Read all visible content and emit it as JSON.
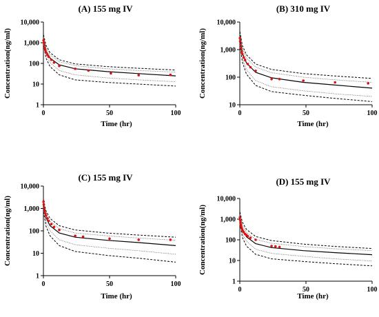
{
  "chart_data": [
    {
      "type": "line",
      "title": "(A) 155 mg IV",
      "xlabel": "Time (hr)",
      "ylabel": "Concentration(ng/ml)",
      "xlim": [
        0,
        100
      ],
      "ylim": [
        1,
        10000
      ],
      "y_scale": "log",
      "x_ticks": [
        "0",
        "50",
        "100"
      ],
      "y_ticks": [
        "1",
        "10",
        "100",
        "1,000",
        "10,000"
      ],
      "grid": false,
      "observed": {
        "x": [
          0.1,
          0.25,
          0.5,
          1,
          1.5,
          2,
          3,
          4,
          6,
          8,
          12,
          24,
          34,
          51,
          72,
          96
        ],
        "y": [
          1300,
          1000,
          800,
          560,
          430,
          340,
          260,
          210,
          150,
          110,
          75,
          55,
          45,
          33,
          27,
          28
        ]
      },
      "series": [
        {
          "x": [
            0.1,
            2,
            5,
            12,
            24,
            48,
            72,
            100
          ],
          "y": [
            1500,
            400,
            180,
            85,
            55,
            40,
            32,
            25
          ]
        },
        {
          "x": [
            0.1,
            2,
            5,
            12,
            24,
            48,
            72,
            100
          ],
          "y": [
            2400,
            750,
            330,
            150,
            95,
            70,
            58,
            48
          ]
        },
        {
          "x": [
            0.1,
            2,
            5,
            12,
            24,
            48,
            72,
            100
          ],
          "y": [
            800,
            180,
            70,
            28,
            16,
            12,
            10,
            8
          ]
        },
        {
          "x": [
            0.1,
            2,
            5,
            12,
            24,
            48,
            72,
            100
          ],
          "y": [
            1900,
            580,
            260,
            120,
            78,
            55,
            45,
            38
          ]
        },
        {
          "x": [
            0.1,
            2,
            5,
            12,
            24,
            48,
            72,
            100
          ],
          "y": [
            1100,
            280,
            110,
            45,
            28,
            20,
            16,
            13
          ]
        }
      ]
    },
    {
      "type": "line",
      "title": "(B) 310 mg IV",
      "xlabel": "Time (hr)",
      "ylabel": "Concentration(ng/ml)",
      "xlim": [
        0,
        100
      ],
      "ylim": [
        10,
        10000
      ],
      "y_scale": "log",
      "x_ticks": [
        "0",
        "50",
        "100"
      ],
      "y_ticks": [
        "10",
        "100",
        "1,000",
        "10,000"
      ],
      "grid": false,
      "observed": {
        "x": [
          0.1,
          0.25,
          0.5,
          1,
          1.5,
          2,
          3,
          4,
          6,
          8,
          12,
          24,
          30,
          48,
          72,
          97
        ],
        "y": [
          2600,
          2000,
          1500,
          1100,
          850,
          680,
          520,
          420,
          300,
          230,
          170,
          85,
          85,
          75,
          65,
          60
        ]
      },
      "series": [
        {
          "x": [
            0.1,
            2,
            5,
            12,
            24,
            48,
            72,
            100
          ],
          "y": [
            2600,
            750,
            330,
            150,
            95,
            65,
            52,
            40
          ]
        },
        {
          "x": [
            0.1,
            2,
            5,
            12,
            24,
            48,
            72,
            100
          ],
          "y": [
            4500,
            1400,
            650,
            300,
            190,
            135,
            110,
            90
          ]
        },
        {
          "x": [
            0.1,
            2,
            5,
            12,
            24,
            48,
            72,
            100
          ],
          "y": [
            1500,
            350,
            130,
            50,
            30,
            22,
            17,
            13
          ]
        },
        {
          "x": [
            0.1,
            2,
            5,
            12,
            24,
            48,
            72,
            100
          ],
          "y": [
            3500,
            1100,
            500,
            230,
            145,
            100,
            80,
            65
          ]
        },
        {
          "x": [
            0.1,
            2,
            5,
            12,
            24,
            48,
            72,
            100
          ],
          "y": [
            2000,
            500,
            190,
            75,
            45,
            32,
            25,
            20
          ]
        }
      ]
    },
    {
      "type": "line",
      "title": "(C) 155 mg IV",
      "xlabel": "Time (hr)",
      "ylabel": "Concentration(ng/ml)",
      "xlim": [
        0,
        100
      ],
      "ylim": [
        1,
        10000
      ],
      "y_scale": "log",
      "x_ticks": [
        "0",
        "50",
        "100"
      ],
      "y_ticks": [
        "1",
        "10",
        "100",
        "1,000",
        "10,000"
      ],
      "grid": false,
      "observed": {
        "x": [
          0.1,
          0.25,
          0.5,
          1,
          1.5,
          2,
          3,
          4,
          6,
          8,
          12,
          24,
          30,
          50,
          72,
          96
        ],
        "y": [
          2000,
          1500,
          1100,
          800,
          600,
          480,
          360,
          280,
          200,
          150,
          110,
          60,
          55,
          45,
          40,
          40
        ]
      },
      "series": [
        {
          "x": [
            0.1,
            2,
            5,
            12,
            24,
            48,
            72,
            100
          ],
          "y": [
            1400,
            380,
            170,
            80,
            52,
            38,
            30,
            22
          ]
        },
        {
          "x": [
            0.1,
            2,
            5,
            12,
            24,
            48,
            72,
            100
          ],
          "y": [
            2400,
            780,
            360,
            170,
            110,
            80,
            65,
            52
          ]
        },
        {
          "x": [
            0.1,
            2,
            5,
            12,
            24,
            48,
            72,
            100
          ],
          "y": [
            700,
            160,
            60,
            22,
            12,
            8,
            6,
            4
          ]
        },
        {
          "x": [
            0.1,
            2,
            5,
            12,
            24,
            48,
            72,
            100
          ],
          "y": [
            1900,
            600,
            270,
            125,
            80,
            60,
            48,
            38
          ]
        },
        {
          "x": [
            0.1,
            2,
            5,
            12,
            24,
            48,
            72,
            100
          ],
          "y": [
            1000,
            250,
            100,
            40,
            24,
            17,
            13,
            9
          ]
        }
      ]
    },
    {
      "type": "line",
      "title": "(D) 155 mg IV",
      "xlabel": "Time (hr)",
      "ylabel": "Concentration(ng/ml)",
      "xlim": [
        0,
        100
      ],
      "ylim": [
        1,
        10000
      ],
      "y_scale": "log",
      "x_ticks": [
        "0",
        "50",
        "100"
      ],
      "y_ticks": [
        "1",
        "10",
        "100",
        "1,000",
        "10,000"
      ],
      "grid": false,
      "observed": {
        "x": [
          0.1,
          0.25,
          0.5,
          0.75,
          1,
          1.5,
          2,
          2.5,
          3,
          4,
          5,
          6,
          8,
          12,
          24,
          27,
          30
        ],
        "y": [
          1200,
          900,
          700,
          560,
          450,
          360,
          300,
          260,
          230,
          190,
          170,
          150,
          125,
          100,
          50,
          48,
          45
        ]
      },
      "series": [
        {
          "x": [
            0.1,
            2,
            5,
            12,
            24,
            48,
            72,
            100
          ],
          "y": [
            1200,
            320,
            140,
            65,
            42,
            30,
            24,
            19
          ]
        },
        {
          "x": [
            0.1,
            2,
            5,
            12,
            24,
            48,
            72,
            100
          ],
          "y": [
            2200,
            700,
            320,
            145,
            92,
            62,
            48,
            38
          ]
        },
        {
          "x": [
            0.1,
            2,
            5,
            12,
            24,
            48,
            72,
            100
          ],
          "y": [
            600,
            130,
            50,
            20,
            12,
            9,
            7,
            5.5
          ]
        },
        {
          "x": [
            0.1,
            2,
            5,
            12,
            24,
            48,
            72,
            100
          ],
          "y": [
            1700,
            520,
            230,
            105,
            68,
            47,
            37,
            30
          ]
        },
        {
          "x": [
            0.1,
            2,
            5,
            12,
            24,
            48,
            72,
            100
          ],
          "y": [
            850,
            200,
            85,
            35,
            22,
            16,
            12,
            9.5
          ]
        }
      ]
    }
  ]
}
